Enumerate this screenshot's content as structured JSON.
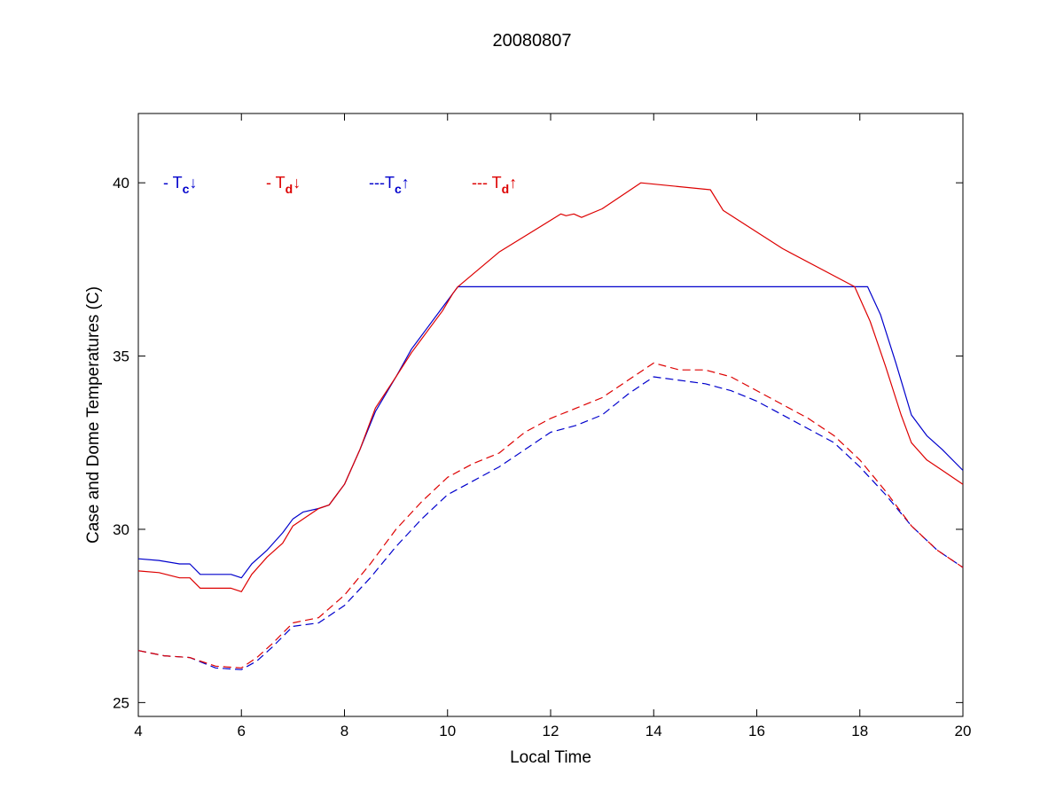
{
  "chart_data": {
    "type": "line",
    "title": "20080807",
    "xlabel": "Local Time",
    "ylabel": "Case and Dome Temperatures (C)",
    "xlim": [
      4,
      20
    ],
    "ylim": [
      24.6,
      42
    ],
    "xticks": [
      4,
      6,
      8,
      10,
      12,
      14,
      16,
      18,
      20
    ],
    "yticks": [
      25,
      30,
      35,
      40
    ],
    "grid": false,
    "legend_placement": "top-left, inline",
    "series": [
      {
        "name": "- T",
        "subscript": "c",
        "arrow": "↓",
        "color": "#0000cc",
        "style": "solid",
        "x": [
          4.0,
          4.4,
          4.8,
          5.0,
          5.2,
          5.5,
          5.8,
          6.0,
          6.2,
          6.5,
          6.8,
          7.0,
          7.2,
          7.5,
          7.7,
          8.0,
          8.3,
          8.6,
          9.0,
          9.3,
          9.6,
          9.9,
          10.1,
          10.2,
          12.0,
          14.0,
          16.0,
          17.9,
          18.15,
          18.4,
          18.7,
          19.0,
          19.3,
          19.6,
          20.0
        ],
        "y": [
          29.15,
          29.1,
          29.0,
          29.0,
          28.7,
          28.7,
          28.7,
          28.6,
          29.0,
          29.4,
          29.9,
          30.3,
          30.5,
          30.6,
          30.7,
          31.3,
          32.3,
          33.4,
          34.4,
          35.2,
          35.8,
          36.4,
          36.8,
          37.0,
          37.0,
          37.0,
          37.0,
          37.0,
          37.0,
          36.2,
          34.8,
          33.3,
          32.7,
          32.3,
          31.7
        ]
      },
      {
        "name": "- T",
        "subscript": "d",
        "arrow": "↓",
        "color": "#dd0000",
        "style": "solid",
        "x": [
          4.0,
          4.4,
          4.8,
          5.0,
          5.2,
          5.5,
          5.8,
          6.0,
          6.2,
          6.5,
          6.8,
          7.0,
          7.2,
          7.5,
          7.7,
          8.0,
          8.3,
          8.6,
          9.0,
          9.3,
          9.6,
          9.9,
          10.1,
          10.2,
          11.0,
          12.2,
          12.3,
          12.45,
          12.6,
          13.0,
          13.75,
          15.1,
          15.35,
          16.5,
          17.9,
          18.2,
          18.5,
          18.8,
          19.0,
          19.3,
          19.6,
          20.0
        ],
        "y": [
          28.8,
          28.75,
          28.6,
          28.6,
          28.3,
          28.3,
          28.3,
          28.2,
          28.7,
          29.2,
          29.6,
          30.1,
          30.3,
          30.6,
          30.7,
          31.3,
          32.3,
          33.5,
          34.4,
          35.1,
          35.7,
          36.3,
          36.8,
          37.0,
          38.0,
          39.1,
          39.05,
          39.1,
          39.0,
          39.25,
          40.0,
          39.8,
          39.2,
          38.1,
          37.0,
          36.0,
          34.7,
          33.3,
          32.5,
          32.0,
          31.7,
          31.3
        ]
      },
      {
        "name": "---T",
        "subscript": "c",
        "arrow": "↑",
        "color": "#0000cc",
        "style": "dashed",
        "x": [
          4.0,
          4.5,
          5.0,
          5.5,
          6.0,
          6.3,
          6.6,
          7.0,
          7.5,
          8.0,
          8.5,
          9.0,
          9.5,
          10.0,
          10.5,
          11.0,
          11.5,
          12.0,
          12.5,
          13.0,
          13.5,
          13.8,
          14.0,
          14.5,
          15.0,
          15.5,
          16.0,
          16.5,
          17.0,
          17.5,
          18.0,
          18.5,
          19.0,
          19.5,
          20.0
        ],
        "y": [
          26.5,
          26.35,
          26.3,
          26.0,
          25.95,
          26.2,
          26.6,
          27.2,
          27.3,
          27.8,
          28.6,
          29.5,
          30.3,
          31.0,
          31.4,
          31.8,
          32.3,
          32.8,
          33.0,
          33.3,
          33.9,
          34.2,
          34.4,
          34.3,
          34.2,
          34.0,
          33.7,
          33.3,
          32.9,
          32.5,
          31.8,
          31.0,
          30.1,
          29.4,
          28.9
        ]
      },
      {
        "name": "--- T",
        "subscript": "d",
        "arrow": "↑",
        "color": "#dd0000",
        "style": "dashed",
        "x": [
          4.0,
          4.5,
          5.0,
          5.5,
          6.0,
          6.3,
          6.6,
          7.0,
          7.5,
          8.0,
          8.5,
          9.0,
          9.5,
          10.0,
          10.5,
          11.0,
          11.5,
          12.0,
          12.5,
          13.0,
          13.5,
          13.8,
          14.0,
          14.5,
          15.0,
          15.5,
          16.0,
          16.5,
          17.0,
          17.5,
          18.0,
          18.5,
          19.0,
          19.5,
          20.0
        ],
        "y": [
          26.5,
          26.35,
          26.3,
          26.05,
          26.0,
          26.3,
          26.7,
          27.3,
          27.45,
          28.1,
          29.0,
          30.0,
          30.8,
          31.5,
          31.9,
          32.2,
          32.8,
          33.2,
          33.5,
          33.8,
          34.3,
          34.6,
          34.8,
          34.6,
          34.6,
          34.4,
          34.0,
          33.6,
          33.2,
          32.7,
          32.0,
          31.1,
          30.1,
          29.4,
          28.9
        ]
      }
    ]
  }
}
